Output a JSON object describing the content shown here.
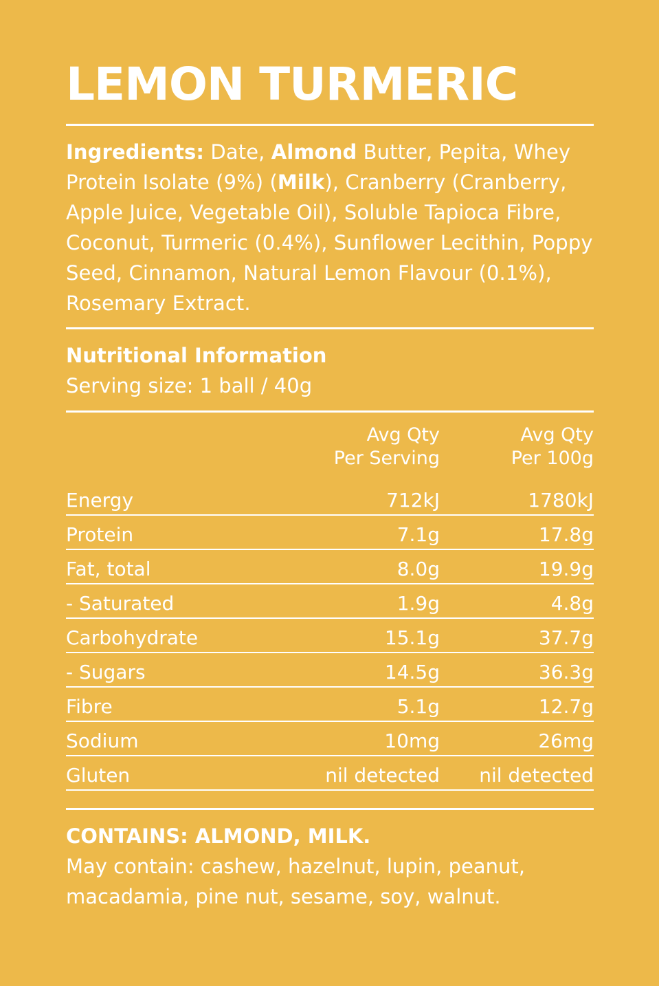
{
  "title": "LEMON TURMERIC",
  "ingredients": {
    "label": "Ingredients:",
    "segments": [
      {
        "text": " Date, ",
        "bold": false
      },
      {
        "text": "Almond",
        "bold": true
      },
      {
        "text": " Butter, Pepita, Whey Protein Isolate (9%) (",
        "bold": false
      },
      {
        "text": "Milk",
        "bold": true
      },
      {
        "text": "), Cranberry (Cranberry, Apple Juice, Vegetable Oil), Soluble Tapioca Fibre, Coconut, Turmeric (0.4%), Sunflower Lecithin, Poppy Seed, Cinnamon, Natural Lemon Flavour (0.1%), Rosemary Extract.",
        "bold": false
      }
    ]
  },
  "nutrition": {
    "title": "Nutritional Information",
    "serving_size": "Serving size: 1 ball / 40g",
    "col_serving_line1": "Avg Qty",
    "col_serving_line2": "Per Serving",
    "col_100g_line1": "Avg Qty",
    "col_100g_line2": "Per 100g",
    "rows": [
      {
        "name": "Energy",
        "per_serving": "712kJ",
        "per_100g": "1780kJ"
      },
      {
        "name": "Protein",
        "per_serving": "7.1g",
        "per_100g": "17.8g"
      },
      {
        "name": "Fat, total",
        "per_serving": "8.0g",
        "per_100g": "19.9g"
      },
      {
        "name": "- Saturated",
        "per_serving": "1.9g",
        "per_100g": "4.8g"
      },
      {
        "name": "Carbohydrate",
        "per_serving": "15.1g",
        "per_100g": "37.7g"
      },
      {
        "name": "- Sugars",
        "per_serving": "14.5g",
        "per_100g": "36.3g"
      },
      {
        "name": "Fibre",
        "per_serving": "5.1g",
        "per_100g": "12.7g"
      },
      {
        "name": "Sodium",
        "per_serving": "10mg",
        "per_100g": "26mg"
      },
      {
        "name": "Gluten",
        "per_serving": "nil detected",
        "per_100g": "nil detected"
      }
    ]
  },
  "allergens": {
    "contains": "CONTAINS: ALMOND, MILK.",
    "may_contain": "May contain: cashew, hazelnut, lupin, peanut, macadamia, pine nut, sesame, soy, walnut."
  },
  "colors": {
    "background": "#EDB94A",
    "text": "#FFFFFF"
  }
}
